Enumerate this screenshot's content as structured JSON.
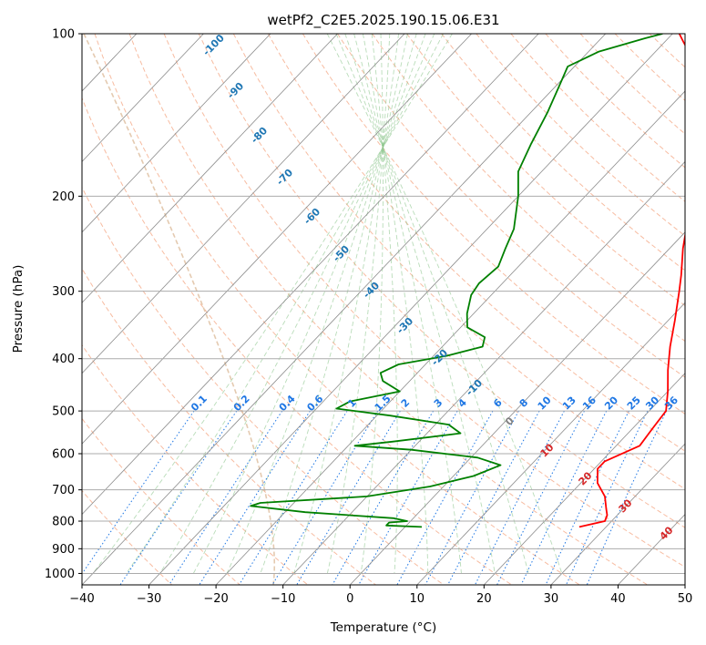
{
  "chart_data": {
    "type": "line",
    "title": "wetPf2_C2E5.2025.190.15.06.E31",
    "xlabel": "Temperature (°C)",
    "ylabel": "Pressure (hPa)",
    "xlim": [
      -40,
      50
    ],
    "ylim": [
      1050,
      100
    ],
    "y_scale": "log",
    "skew": "skew-T log-P",
    "grid": true,
    "x_ticks": [
      -40,
      -30,
      -20,
      -10,
      0,
      10,
      20,
      30,
      40,
      50
    ],
    "y_ticks": [
      100,
      200,
      300,
      400,
      500,
      600,
      700,
      800,
      900,
      1000
    ],
    "series": [
      {
        "color": "#ff0000",
        "points": [
          [
            820,
            26.0
          ],
          [
            800,
            29.0
          ],
          [
            780,
            28.5
          ],
          [
            760,
            27.5
          ],
          [
            720,
            25.5
          ],
          [
            680,
            22.5
          ],
          [
            640,
            20.5
          ],
          [
            620,
            20.5
          ],
          [
            580,
            23.5
          ],
          [
            540,
            23.0
          ],
          [
            500,
            22.5
          ],
          [
            460,
            20.0
          ],
          [
            420,
            17.0
          ],
          [
            380,
            14.0
          ],
          [
            340,
            11.0
          ],
          [
            300,
            7.5
          ],
          [
            280,
            5.5
          ],
          [
            250,
            2.0
          ],
          [
            220,
            -1.5
          ],
          [
            200,
            -4.5
          ],
          [
            180,
            -7.5
          ],
          [
            160,
            -10.5
          ],
          [
            140,
            -14.5
          ],
          [
            125,
            -18.5
          ],
          [
            115,
            -22.0
          ],
          [
            108,
            -25.0
          ],
          [
            104,
            -27.0
          ],
          [
            100,
            -29.0
          ]
        ]
      },
      {
        "color": "#008000",
        "points": [
          [
            820,
            2.5
          ],
          [
            815,
            -3.0
          ],
          [
            805,
            -3.0
          ],
          [
            800,
            -0.5
          ],
          [
            790,
            -3.0
          ],
          [
            770,
            -17.0
          ],
          [
            750,
            -26.0
          ],
          [
            740,
            -25.0
          ],
          [
            720,
            -10.0
          ],
          [
            690,
            -2.0
          ],
          [
            660,
            3.0
          ],
          [
            630,
            5.5
          ],
          [
            610,
            1.0
          ],
          [
            590,
            -10.0
          ],
          [
            580,
            -19.0
          ],
          [
            570,
            -14.0
          ],
          [
            550,
            -5.0
          ],
          [
            530,
            -8.0
          ],
          [
            510,
            -18.0
          ],
          [
            495,
            -27.0
          ],
          [
            480,
            -26.0
          ],
          [
            460,
            -20.0
          ],
          [
            440,
            -24.0
          ],
          [
            425,
            -25.5
          ],
          [
            410,
            -24.0
          ],
          [
            395,
            -18.0
          ],
          [
            380,
            -14.0
          ],
          [
            365,
            -15.0
          ],
          [
            350,
            -19.0
          ],
          [
            330,
            -21.0
          ],
          [
            305,
            -23.0
          ],
          [
            290,
            -23.5
          ],
          [
            270,
            -23.0
          ],
          [
            250,
            -24.5
          ],
          [
            230,
            -26.0
          ],
          [
            200,
            -30.0
          ],
          [
            180,
            -33.5
          ],
          [
            160,
            -35.5
          ],
          [
            140,
            -37.5
          ],
          [
            125,
            -39.5
          ],
          [
            115,
            -41.0
          ],
          [
            108,
            -38.5
          ],
          [
            102,
            -33.5
          ],
          [
            100,
            -31.5
          ]
        ]
      }
    ],
    "dry_adiabat_labels": [
      "-100",
      "-90",
      "-80",
      "-70",
      "-60",
      "-50",
      "-40",
      "-30",
      "-20",
      "-10",
      "0",
      "10",
      "20",
      "30",
      "40"
    ],
    "mixing_ratio_labels": [
      "0.1",
      "0.2",
      "0.4",
      "0.6",
      "1",
      "1.5",
      "2",
      "3",
      "4",
      "6",
      "8",
      "10",
      "13",
      "16",
      "20",
      "25",
      "30",
      "36"
    ]
  }
}
